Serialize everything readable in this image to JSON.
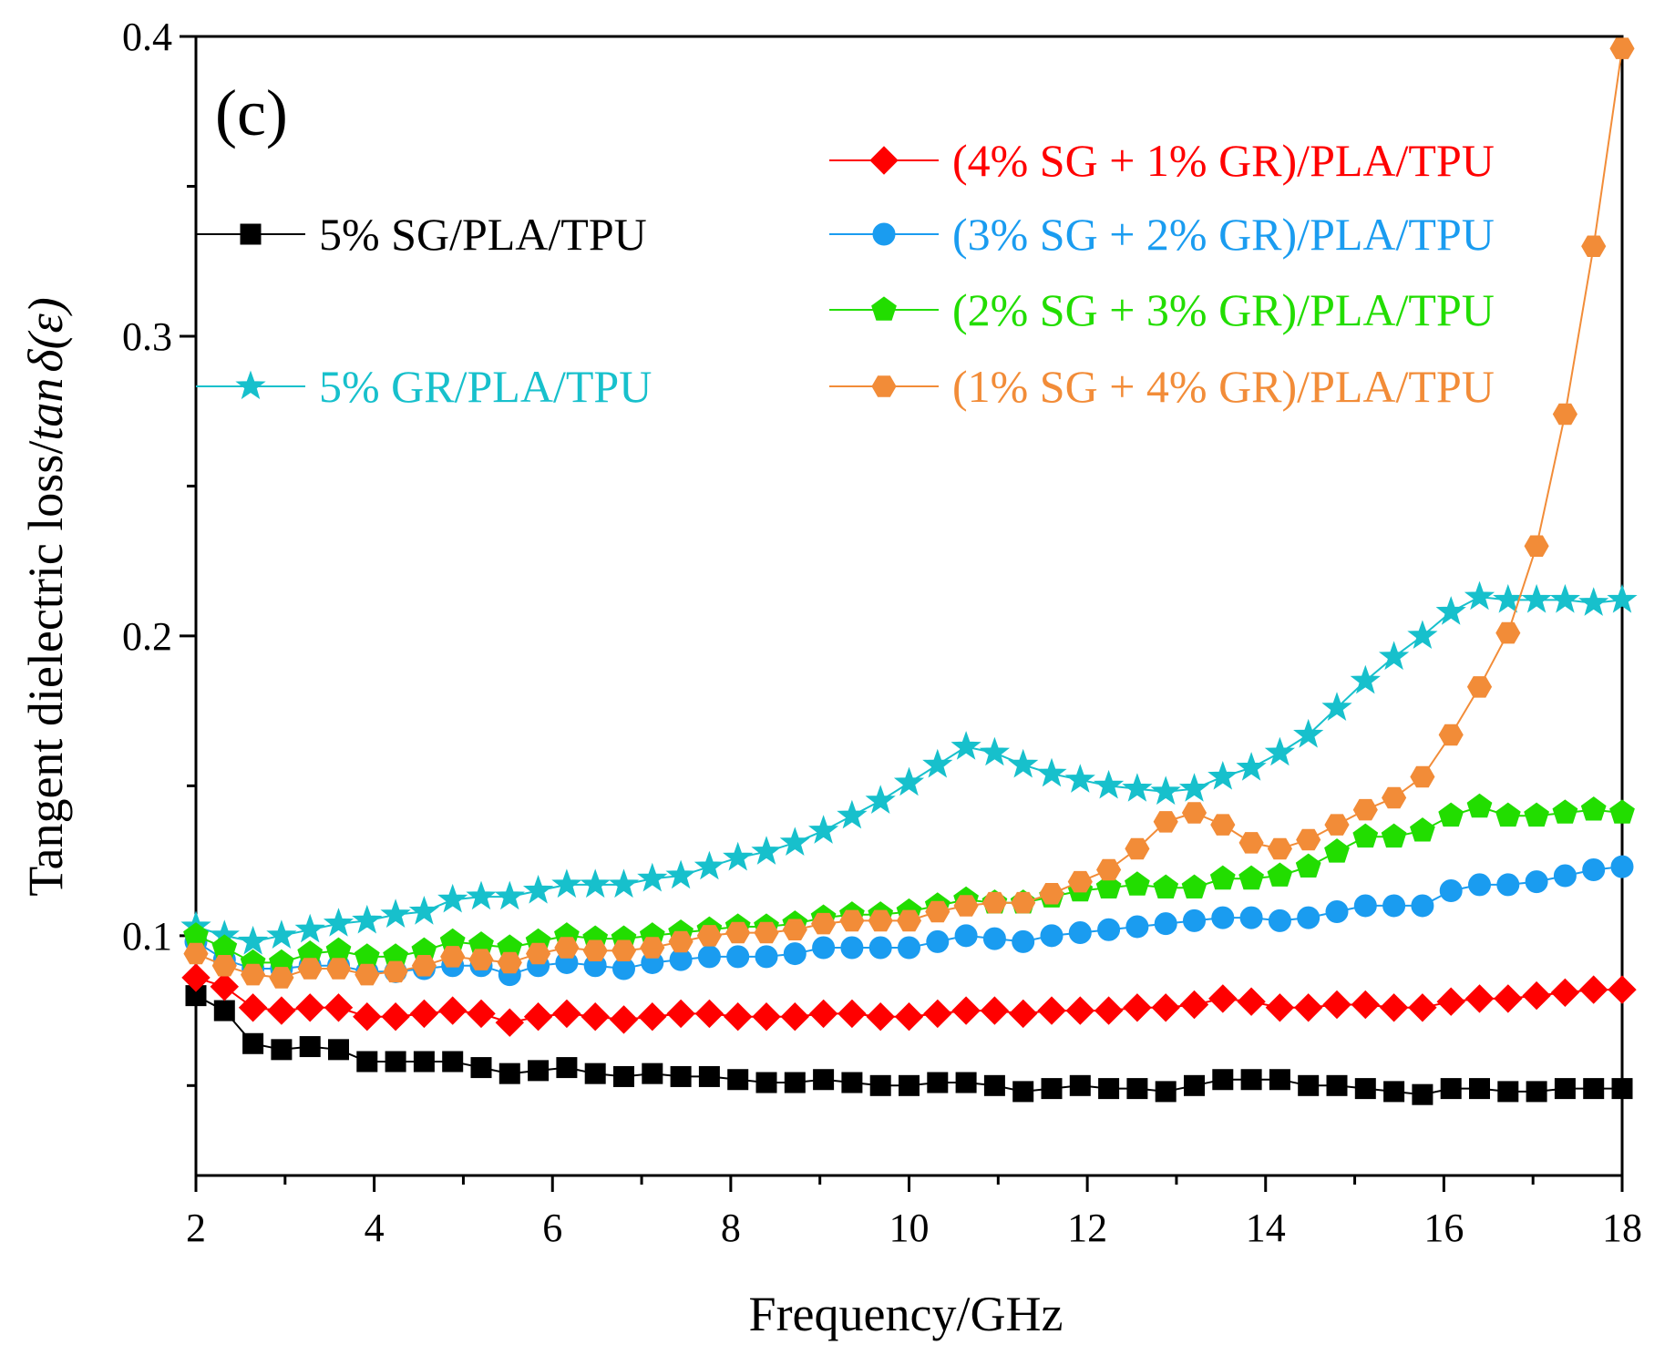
{
  "chart_data": {
    "type": "line",
    "panel_label": "(c)",
    "xlabel": "Frequency/GHz",
    "ylabel_main": "Tangent dielectric loss/",
    "ylabel_italic": "tan",
    "ylabel_delta": "δ",
    "ylabel_tail": "(ε)",
    "xlim": [
      2,
      18
    ],
    "ylim": [
      0.02,
      0.4
    ],
    "x_ticks": [
      2,
      4,
      6,
      8,
      10,
      12,
      14,
      16,
      18
    ],
    "x_tick_labels": [
      "2",
      "4",
      "6",
      "8",
      "10",
      "12",
      "14",
      "16",
      "18"
    ],
    "y_ticks": [
      0.1,
      0.2,
      0.3,
      0.4
    ],
    "y_tick_labels": [
      "0.1",
      "0.2",
      "0.3",
      "0.4"
    ],
    "grid": false,
    "x": [
      2.0,
      2.32,
      2.64,
      2.96,
      3.28,
      3.6,
      3.92,
      4.24,
      4.56,
      4.88,
      5.2,
      5.52,
      5.84,
      6.16,
      6.48,
      6.8,
      7.12,
      7.44,
      7.76,
      8.08,
      8.4,
      8.72,
      9.04,
      9.36,
      9.68,
      10.0,
      10.32,
      10.64,
      10.96,
      11.28,
      11.6,
      11.92,
      12.24,
      12.56,
      12.88,
      13.2,
      13.52,
      13.84,
      14.16,
      14.48,
      14.8,
      15.12,
      15.44,
      15.76,
      16.08,
      16.4,
      16.72,
      17.04,
      17.36,
      17.68,
      18.0
    ],
    "series": [
      {
        "name": "5% SG/PLA/TPU",
        "color": "#000000",
        "marker": "square",
        "legend_group": "left",
        "values": [
          0.08,
          0.075,
          0.064,
          0.062,
          0.063,
          0.062,
          0.058,
          0.058,
          0.058,
          0.058,
          0.056,
          0.054,
          0.055,
          0.056,
          0.054,
          0.053,
          0.054,
          0.053,
          0.053,
          0.052,
          0.051,
          0.051,
          0.052,
          0.051,
          0.05,
          0.05,
          0.051,
          0.051,
          0.05,
          0.048,
          0.049,
          0.05,
          0.049,
          0.049,
          0.048,
          0.05,
          0.052,
          0.052,
          0.052,
          0.05,
          0.05,
          0.049,
          0.048,
          0.047,
          0.049,
          0.049,
          0.048,
          0.048,
          0.049,
          0.049,
          0.049
        ]
      },
      {
        "name": "5% GR/PLA/TPU",
        "color": "#17c0cc",
        "marker": "star",
        "legend_group": "left",
        "values": [
          0.103,
          0.1,
          0.098,
          0.1,
          0.102,
          0.104,
          0.105,
          0.107,
          0.108,
          0.112,
          0.113,
          0.113,
          0.115,
          0.117,
          0.117,
          0.117,
          0.119,
          0.12,
          0.123,
          0.126,
          0.128,
          0.131,
          0.135,
          0.14,
          0.145,
          0.151,
          0.157,
          0.163,
          0.161,
          0.157,
          0.154,
          0.152,
          0.15,
          0.149,
          0.148,
          0.149,
          0.153,
          0.156,
          0.161,
          0.167,
          0.176,
          0.185,
          0.193,
          0.2,
          0.208,
          0.213,
          0.212,
          0.212,
          0.212,
          0.211,
          0.212
        ]
      },
      {
        "name": "(4% SG + 1% GR)/PLA/TPU",
        "color": "#ff0000",
        "marker": "diamond",
        "legend_group": "right",
        "values": [
          0.086,
          0.083,
          0.076,
          0.075,
          0.076,
          0.076,
          0.073,
          0.073,
          0.074,
          0.075,
          0.074,
          0.071,
          0.073,
          0.074,
          0.073,
          0.072,
          0.073,
          0.074,
          0.074,
          0.073,
          0.073,
          0.073,
          0.074,
          0.074,
          0.073,
          0.073,
          0.074,
          0.075,
          0.075,
          0.074,
          0.075,
          0.075,
          0.075,
          0.076,
          0.076,
          0.077,
          0.079,
          0.078,
          0.076,
          0.076,
          0.077,
          0.077,
          0.076,
          0.076,
          0.078,
          0.079,
          0.079,
          0.08,
          0.081,
          0.082,
          0.082
        ]
      },
      {
        "name": "(3% SG + 2% GR)/PLA/TPU",
        "color": "#1a9cf0",
        "marker": "circle",
        "legend_group": "right",
        "values": [
          0.098,
          0.092,
          0.089,
          0.089,
          0.09,
          0.09,
          0.088,
          0.088,
          0.089,
          0.09,
          0.09,
          0.087,
          0.09,
          0.091,
          0.09,
          0.089,
          0.091,
          0.092,
          0.093,
          0.093,
          0.093,
          0.094,
          0.096,
          0.096,
          0.096,
          0.096,
          0.098,
          0.1,
          0.099,
          0.098,
          0.1,
          0.101,
          0.102,
          0.103,
          0.104,
          0.105,
          0.106,
          0.106,
          0.105,
          0.106,
          0.108,
          0.11,
          0.11,
          0.11,
          0.115,
          0.117,
          0.117,
          0.118,
          0.12,
          0.122,
          0.123
        ]
      },
      {
        "name": "(2% SG + 3% GR)/PLA/TPU",
        "color": "#22dd00",
        "marker": "pentagon",
        "legend_group": "right",
        "values": [
          0.1,
          0.096,
          0.091,
          0.091,
          0.094,
          0.095,
          0.093,
          0.093,
          0.095,
          0.098,
          0.097,
          0.096,
          0.098,
          0.1,
          0.099,
          0.099,
          0.1,
          0.101,
          0.102,
          0.103,
          0.103,
          0.104,
          0.106,
          0.107,
          0.107,
          0.108,
          0.11,
          0.112,
          0.111,
          0.111,
          0.113,
          0.115,
          0.116,
          0.117,
          0.116,
          0.116,
          0.119,
          0.119,
          0.12,
          0.123,
          0.128,
          0.133,
          0.133,
          0.135,
          0.14,
          0.143,
          0.14,
          0.14,
          0.141,
          0.142,
          0.141
        ]
      },
      {
        "name": "(1% SG + 4% GR)/PLA/TPU",
        "color": "#f28c38",
        "marker": "hexagon",
        "legend_group": "right",
        "values": [
          0.094,
          0.09,
          0.087,
          0.086,
          0.089,
          0.089,
          0.087,
          0.088,
          0.09,
          0.093,
          0.092,
          0.091,
          0.094,
          0.096,
          0.095,
          0.095,
          0.096,
          0.098,
          0.1,
          0.101,
          0.101,
          0.102,
          0.104,
          0.105,
          0.105,
          0.105,
          0.108,
          0.11,
          0.111,
          0.111,
          0.114,
          0.118,
          0.122,
          0.129,
          0.138,
          0.141,
          0.137,
          0.131,
          0.129,
          0.132,
          0.137,
          0.142,
          0.146,
          0.153,
          0.167,
          0.183,
          0.201,
          0.23,
          0.274,
          0.33,
          0.396
        ]
      }
    ]
  }
}
